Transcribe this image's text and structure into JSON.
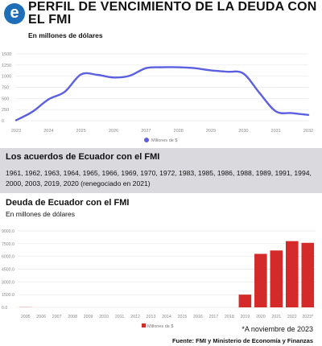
{
  "header": {
    "logo_letter": "e",
    "title": "PERFIL DE VENCIMIENTO DE LA DEUDA CON EL FMI",
    "subtitle": "En millones de dólares"
  },
  "agreements": {
    "title": "Los acuerdos de Ecuador con el FMI",
    "text": "1961, 1962, 1963, 1964, 1965, 1966, 1969, 1970, 1972, 1983, 1985, 1986, 1988, 1989, 1991, 1994, 2000, 2003, 2019, 2020 (renegociado en 2021)"
  },
  "chart2_header": {
    "title": "Deuda de Ecuador con el FMI",
    "subtitle": "En millones de dólares"
  },
  "footer": {
    "note": "*A noviembre de 2023",
    "source": "Fuente: FMI y Ministerio de Economía y Finanzas"
  },
  "colors": {
    "line": "#5b5fe0",
    "bar": "#d42a2a",
    "band": "#d9d9de",
    "logo": "#1e6fb8"
  },
  "chart_data": [
    {
      "type": "line",
      "title": "PERFIL DE VENCIMIENTO DE LA DEUDA CON EL FMI",
      "ylabel": "En millones de dólares",
      "x": [
        2023,
        2023.5,
        2024,
        2024.5,
        2025,
        2025.5,
        2026,
        2026.5,
        2027,
        2027.5,
        2028,
        2028.5,
        2029,
        2029.5,
        2030,
        2030.5,
        2031,
        2031.5,
        2032
      ],
      "series": [
        {
          "name": "Millones de $",
          "values": [
            10,
            200,
            480,
            650,
            1040,
            1030,
            970,
            1010,
            1180,
            1200,
            1200,
            1180,
            1130,
            1100,
            1060,
            620,
            210,
            170,
            130
          ]
        }
      ],
      "yticks": [
        0,
        250,
        500,
        750,
        1000,
        1250,
        1500
      ],
      "xticks": [
        2023,
        2024,
        2025,
        2026,
        2027,
        2028,
        2029,
        2030,
        2031,
        2032
      ],
      "ylim": [
        0,
        1500
      ],
      "xlim": [
        2023,
        2032
      ],
      "grid": true,
      "legend": "bottom"
    },
    {
      "type": "bar",
      "title": "Deuda de Ecuador con el FMI",
      "ylabel": "En millones de dólares",
      "categories": [
        "2005",
        "2006",
        "2007",
        "2008",
        "2009",
        "2010",
        "2011",
        "2012",
        "2013",
        "2014",
        "2015",
        "2016",
        "2017",
        "2018",
        "2019",
        "2020",
        "2021",
        "2022",
        "2023*"
      ],
      "series": [
        {
          "name": "Millones de $",
          "values": [
            20,
            0,
            0,
            0,
            0,
            0,
            0,
            0,
            0,
            0,
            0,
            0,
            0,
            0,
            1500,
            6300,
            6700,
            7800,
            7600
          ]
        }
      ],
      "yticks": [
        0,
        1500,
        3000,
        4500,
        6000,
        7500,
        9000
      ],
      "ytick_labels": [
        "0.0",
        "1500.0",
        "3000.0",
        "4500.0",
        "6000.0",
        "7500.0",
        "9000.0"
      ],
      "ylim": [
        0,
        9000
      ],
      "grid": true,
      "legend": "bottom"
    }
  ]
}
